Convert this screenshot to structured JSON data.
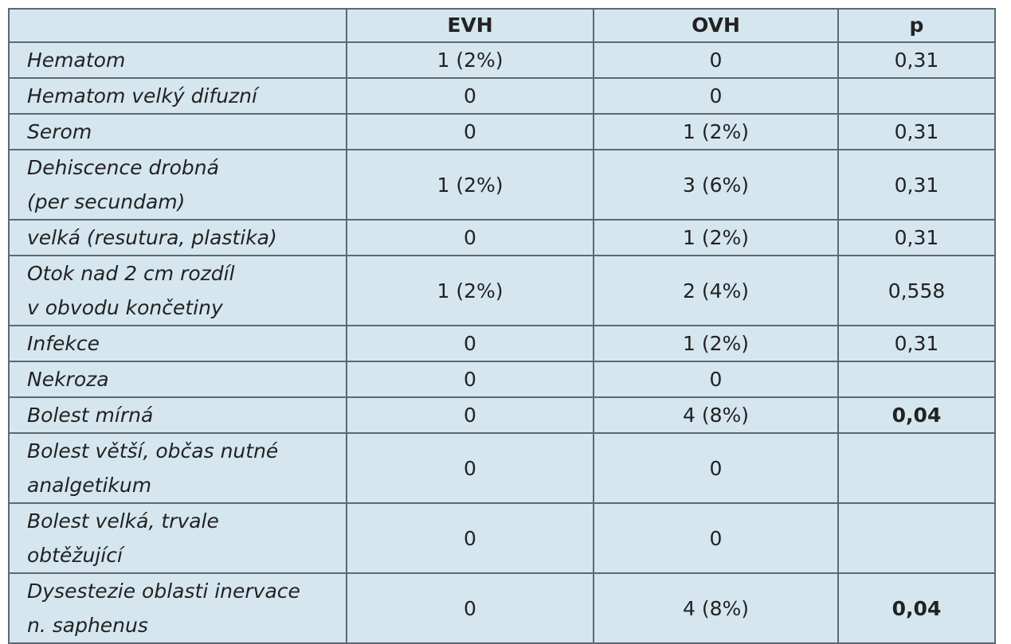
{
  "table": {
    "header": [
      "EVH",
      "OVH",
      "p"
    ],
    "rows": [
      {
        "label": "Hematom",
        "cells": [
          "1 (2%)",
          "0",
          "0,31"
        ]
      },
      {
        "label": "Hematom velký difuzní",
        "cells": [
          "0",
          "0",
          null
        ]
      },
      {
        "label": "Serom",
        "cells": [
          "0",
          "1 (2%)",
          "0,31"
        ]
      },
      {
        "label": "Dehiscence drobná\n(per secundam)",
        "cells": [
          "1 (2%)",
          "3 (6%)",
          "0,31"
        ]
      },
      {
        "label": "velká (resutura, plastika)",
        "cells": [
          "0",
          "1 (2%)",
          "0,31"
        ]
      },
      {
        "label": "Otok nad 2 cm rozdíl\nv obvodu končetiny",
        "cells": [
          "1 (2%)",
          "2 (4%)",
          "0,558"
        ]
      },
      {
        "label": "Infekce",
        "cells": [
          "0",
          "1 (2%)",
          "0,31"
        ]
      },
      {
        "label": "Nekroza",
        "cells": [
          "0",
          "0",
          null
        ]
      },
      {
        "label": "Bolest mírná",
        "cells": [
          "0",
          "4 (8%)",
          "0,04"
        ],
        "p_bold": true
      },
      {
        "label": "Bolest větší, občas nutné\nanalgetikum",
        "cells": [
          "0",
          "0",
          null
        ]
      },
      {
        "label": "Bolest velká, trvale\nobtěžující",
        "cells": [
          "0",
          "0",
          null
        ]
      },
      {
        "label": "Dysestezie oblasti inervace\nn. saphenus",
        "cells": [
          "0",
          "4 (8%)",
          "0,04"
        ],
        "p_bold": true
      }
    ]
  }
}
